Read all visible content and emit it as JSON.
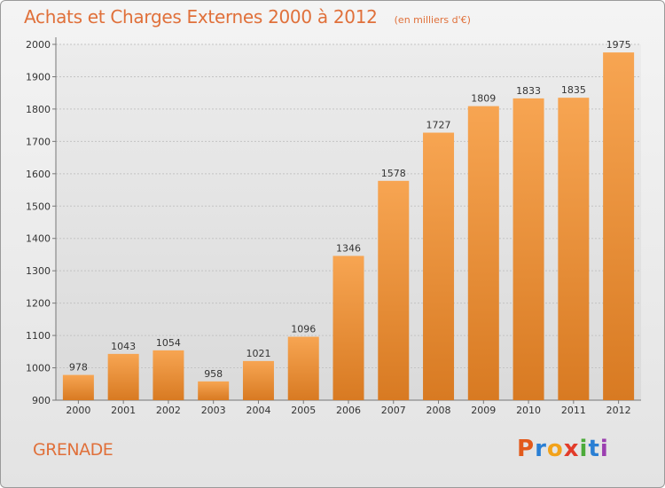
{
  "header": {
    "title": "Achats et Charges Externes 2000 à 2012",
    "subtitle": "(en milliers d'€)"
  },
  "footer": {
    "place": "GRENADE",
    "logo": {
      "letters": [
        "P",
        "r",
        "o",
        "x",
        "i",
        "t",
        "i"
      ]
    }
  },
  "colors": {
    "bar_top": "#f7a552",
    "bar_bottom": "#d87a22",
    "title": "#e0703a",
    "logo": [
      "#e25a1c",
      "#2a7fd4",
      "#f2a21a",
      "#e23c2a",
      "#4cab3a",
      "#2a7fd4",
      "#9b3fb0"
    ]
  },
  "chart_data": {
    "type": "bar",
    "title": "Achats et Charges Externes 2000 à 2012",
    "subtitle": "(en milliers d'€)",
    "categories": [
      "2000",
      "2001",
      "2002",
      "2003",
      "2004",
      "2005",
      "2006",
      "2007",
      "2008",
      "2009",
      "2010",
      "2011",
      "2012"
    ],
    "values": [
      978,
      1043,
      1054,
      958,
      1021,
      1096,
      1346,
      1578,
      1727,
      1809,
      1833,
      1835,
      1975
    ],
    "ylim": [
      900,
      2000
    ],
    "yticks": [
      900,
      1000,
      1100,
      1200,
      1300,
      1400,
      1500,
      1600,
      1700,
      1800,
      1900,
      2000
    ],
    "grid": true,
    "xlabel": "",
    "ylabel": ""
  }
}
